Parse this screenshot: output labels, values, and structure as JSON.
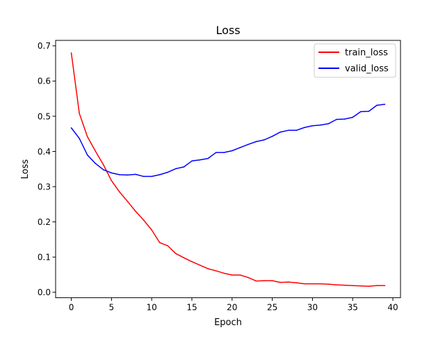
{
  "chart_data": {
    "type": "line",
    "title": "Loss",
    "xlabel": "Epoch",
    "ylabel": "Loss",
    "xlim": [
      -1.95,
      40.95
    ],
    "ylim": [
      -0.0155,
      0.7155
    ],
    "xticks": [
      0,
      5,
      10,
      15,
      20,
      25,
      30,
      35,
      40
    ],
    "yticks": [
      0.0,
      0.1,
      0.2,
      0.3,
      0.4,
      0.5,
      0.6,
      0.7
    ],
    "xtick_labels": [
      "0",
      "5",
      "10",
      "15",
      "20",
      "25",
      "30",
      "35",
      "40"
    ],
    "ytick_labels": [
      "0.0",
      "0.1",
      "0.2",
      "0.3",
      "0.4",
      "0.5",
      "0.6",
      "0.7"
    ],
    "grid": false,
    "legend_position": "top-right",
    "x": [
      0,
      1,
      2,
      3,
      4,
      5,
      6,
      7,
      8,
      9,
      10,
      11,
      12,
      13,
      14,
      15,
      16,
      17,
      18,
      19,
      20,
      21,
      22,
      23,
      24,
      25,
      26,
      27,
      28,
      29,
      30,
      31,
      32,
      33,
      34,
      35,
      36,
      37,
      38,
      39
    ],
    "series": [
      {
        "name": "train_loss",
        "color": "#ff0000",
        "values": [
          0.68,
          0.508,
          0.442,
          0.401,
          0.362,
          0.317,
          0.285,
          0.258,
          0.23,
          0.205,
          0.177,
          0.141,
          0.132,
          0.11,
          0.098,
          0.087,
          0.077,
          0.067,
          0.061,
          0.054,
          0.049,
          0.049,
          0.042,
          0.032,
          0.033,
          0.033,
          0.028,
          0.029,
          0.027,
          0.024,
          0.024,
          0.024,
          0.023,
          0.021,
          0.02,
          0.019,
          0.018,
          0.017,
          0.019,
          0.019
        ]
      },
      {
        "name": "valid_loss",
        "color": "#0000ff",
        "values": [
          0.467,
          0.437,
          0.39,
          0.366,
          0.348,
          0.339,
          0.334,
          0.333,
          0.335,
          0.329,
          0.329,
          0.334,
          0.341,
          0.351,
          0.356,
          0.373,
          0.376,
          0.38,
          0.397,
          0.397,
          0.402,
          0.411,
          0.42,
          0.428,
          0.433,
          0.443,
          0.455,
          0.46,
          0.46,
          0.468,
          0.473,
          0.475,
          0.479,
          0.491,
          0.492,
          0.497,
          0.513,
          0.514,
          0.531,
          0.534
        ]
      }
    ]
  }
}
